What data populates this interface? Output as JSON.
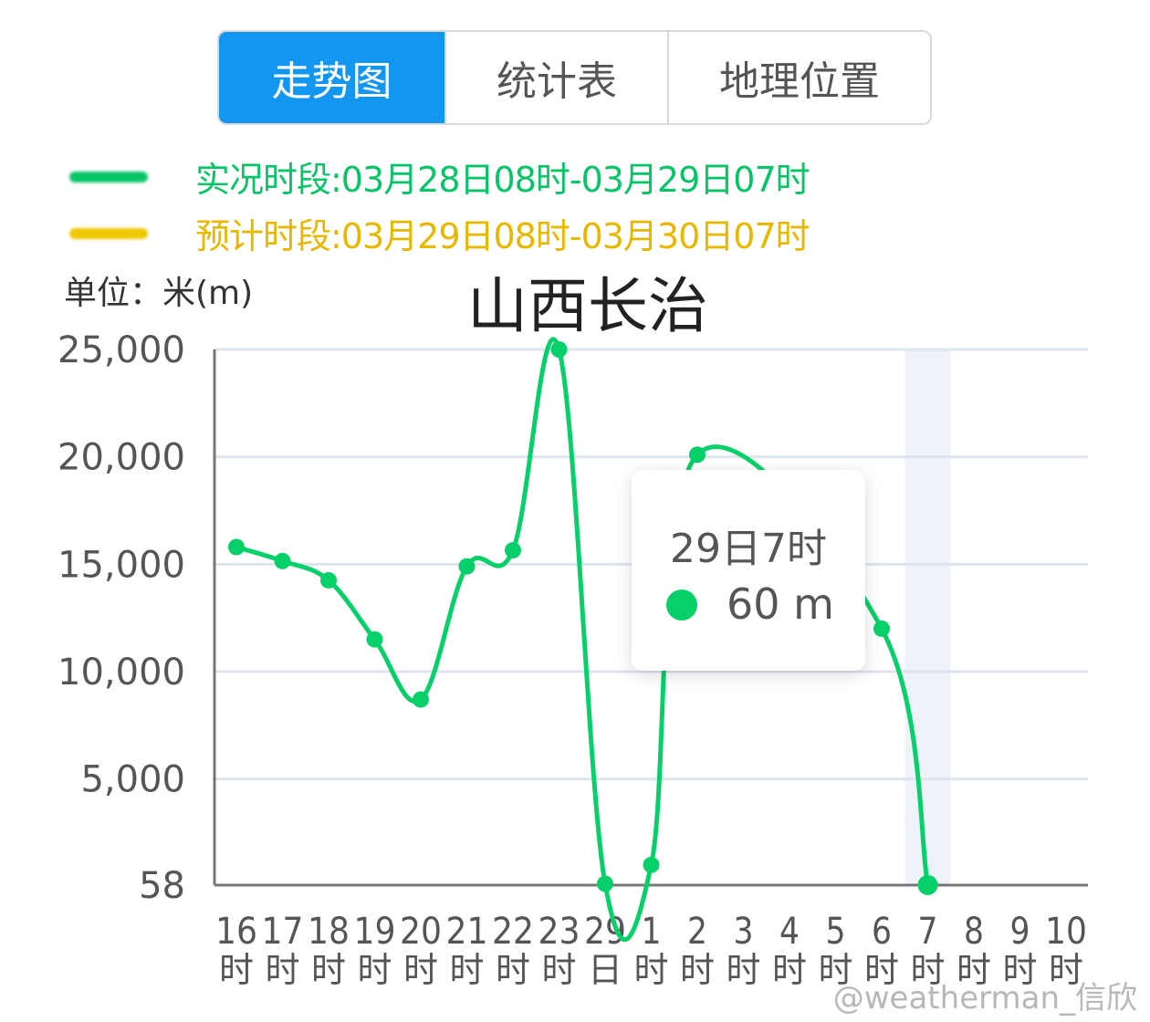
{
  "tabs": [
    {
      "label": "走势图",
      "active": true
    },
    {
      "label": "统计表",
      "active": false
    },
    {
      "label": "地理位置",
      "active": false
    }
  ],
  "legend": [
    {
      "text": "实况时段:03月28日08时-03月29日07时",
      "color": "#07c466"
    },
    {
      "text": "预计时段:03月29日08时-03月30日07时",
      "color": "#f0c800"
    }
  ],
  "unit_label": "单位：米(m)",
  "tooltip": {
    "time": "29日7时",
    "value": "60 m"
  },
  "watermark": "@weatherman_信欣",
  "colors": {
    "line": "#07d06a",
    "grid": "#dde4ef",
    "axis": "#777777",
    "band": "#eef2f9"
  },
  "chart_data": {
    "type": "line",
    "title": "山西长治",
    "ylabel": "米(m)",
    "ylim": [
      58,
      25000
    ],
    "y_ticks": [
      {
        "value": 58,
        "label": "58"
      },
      {
        "value": 5000,
        "label": "5,000"
      },
      {
        "value": 10000,
        "label": "10,000"
      },
      {
        "value": 15000,
        "label": "15,000"
      },
      {
        "value": 20000,
        "label": "20,000"
      },
      {
        "value": 25000,
        "label": "25,000"
      }
    ],
    "categories": [
      [
        "16",
        "时"
      ],
      [
        "17",
        "时"
      ],
      [
        "18",
        "时"
      ],
      [
        "19",
        "时"
      ],
      [
        "20",
        "时"
      ],
      [
        "21",
        "时"
      ],
      [
        "22",
        "时"
      ],
      [
        "23",
        "时"
      ],
      [
        "29",
        "日"
      ],
      [
        "1",
        "时"
      ],
      [
        "2",
        "时"
      ],
      [
        "3",
        "时"
      ],
      [
        "4",
        "时"
      ],
      [
        "5",
        "时"
      ],
      [
        "6",
        "时"
      ],
      [
        "7",
        "时"
      ],
      [
        "8",
        "时"
      ],
      [
        "9",
        "时"
      ],
      [
        "10",
        "时"
      ]
    ],
    "series": [
      {
        "values": [
          15800,
          15150,
          14250,
          11500,
          8700,
          14900,
          15650,
          25000,
          120,
          1000,
          20100,
          null,
          null,
          null,
          12000,
          60,
          null,
          null,
          null
        ]
      }
    ],
    "highlight_index": 15,
    "grid": true
  }
}
